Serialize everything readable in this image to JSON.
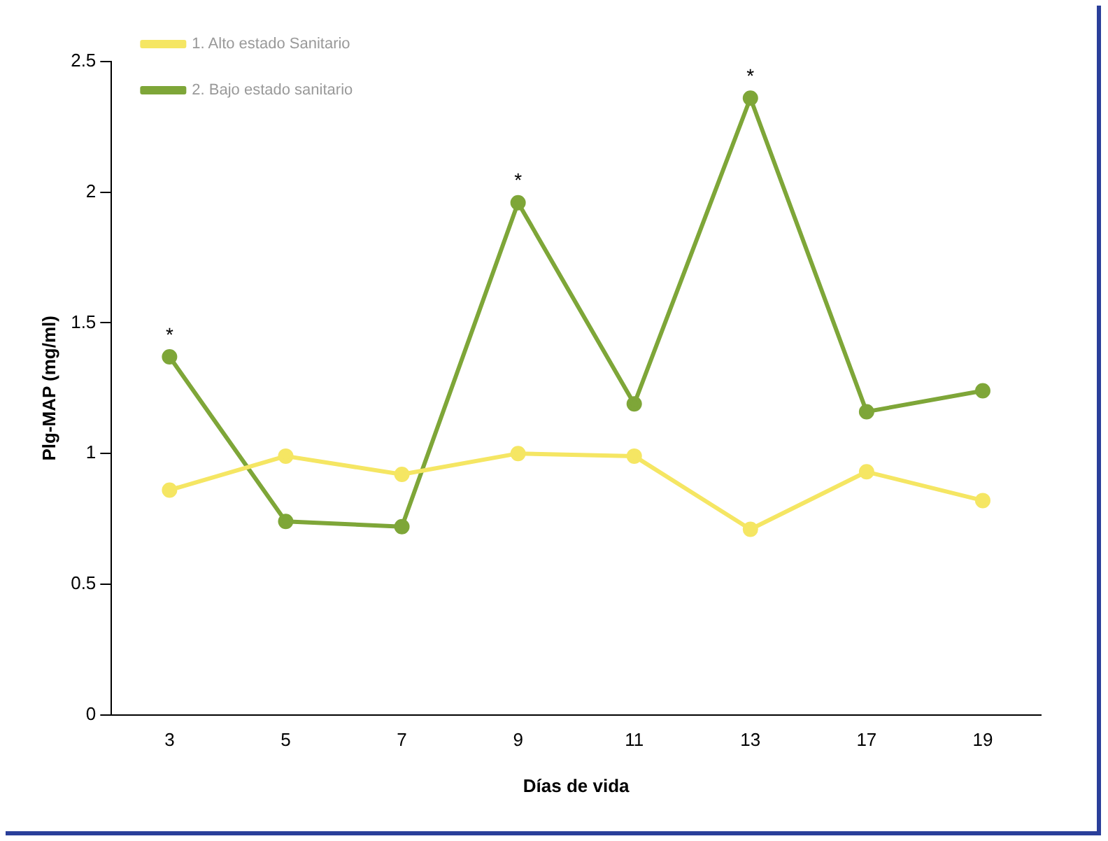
{
  "chart_data": {
    "type": "line",
    "xlabel": "Días de vida",
    "ylabel": "Plg-MAP (mg/ml)",
    "categories": [
      "3",
      "5",
      "7",
      "9",
      "11",
      "13",
      "17",
      "19"
    ],
    "series": [
      {
        "name": "1. Alto estado Sanitario",
        "color": "#f5e663",
        "values": [
          0.86,
          0.99,
          0.92,
          1.0,
          0.99,
          0.71,
          0.93,
          0.82
        ]
      },
      {
        "name": "2. Bajo estado sanitario",
        "color": "#7ea638",
        "values": [
          1.37,
          0.74,
          0.72,
          1.96,
          1.19,
          2.36,
          1.16,
          1.24
        ]
      }
    ],
    "ylim": [
      0,
      2.5
    ],
    "yticks": [
      0,
      0.5,
      1,
      1.5,
      2,
      2.5
    ],
    "grid": false,
    "legend": "top left",
    "marker": "circle",
    "line_style": "solid",
    "annotations": [
      {
        "text": "*",
        "x": "3",
        "y": 1.37
      },
      {
        "text": "*",
        "x": "9",
        "y": 1.96
      },
      {
        "text": "*",
        "x": "13",
        "y": 2.36
      }
    ]
  }
}
